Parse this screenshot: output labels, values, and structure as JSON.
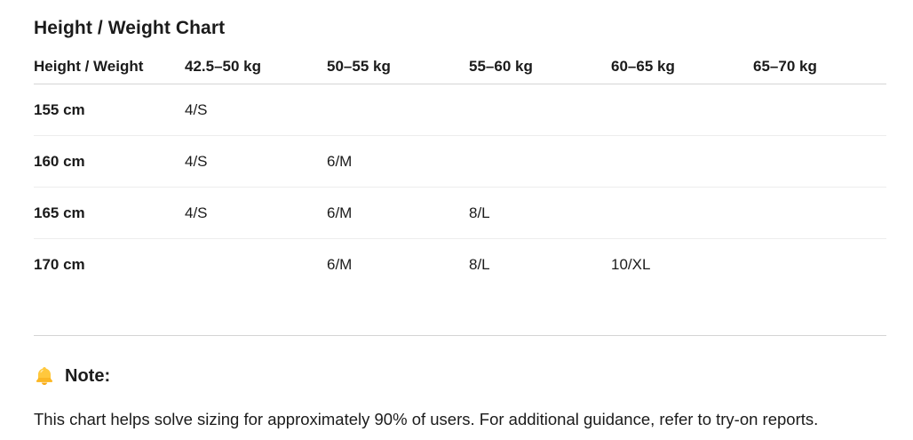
{
  "title": "Height / Weight Chart",
  "table": {
    "columns": [
      "Height / Weight",
      "42.5–50 kg",
      "50–55 kg",
      "55–60 kg",
      "60–65 kg",
      "65–70 kg"
    ],
    "rows": [
      {
        "label": "155 cm",
        "cells": [
          "4/S",
          "",
          "",
          "",
          ""
        ]
      },
      {
        "label": "160 cm",
        "cells": [
          "4/S",
          "6/M",
          "",
          "",
          ""
        ]
      },
      {
        "label": "165 cm",
        "cells": [
          "4/S",
          "6/M",
          "8/L",
          "",
          ""
        ]
      },
      {
        "label": "170 cm",
        "cells": [
          "",
          "6/M",
          "8/L",
          "10/XL",
          ""
        ]
      }
    ]
  },
  "note": {
    "icon": "bell-icon",
    "heading": "Note:",
    "body": "This chart helps solve sizing for approximately 90% of users. For additional guidance, refer to try-on reports."
  },
  "colors": {
    "text": "#1b1b1b",
    "header_border": "#d4d4d4",
    "row_border": "#ededed",
    "divider": "#d4d4d4",
    "bell_body": "#FFC83D",
    "bell_shadow": "#F8A912"
  }
}
